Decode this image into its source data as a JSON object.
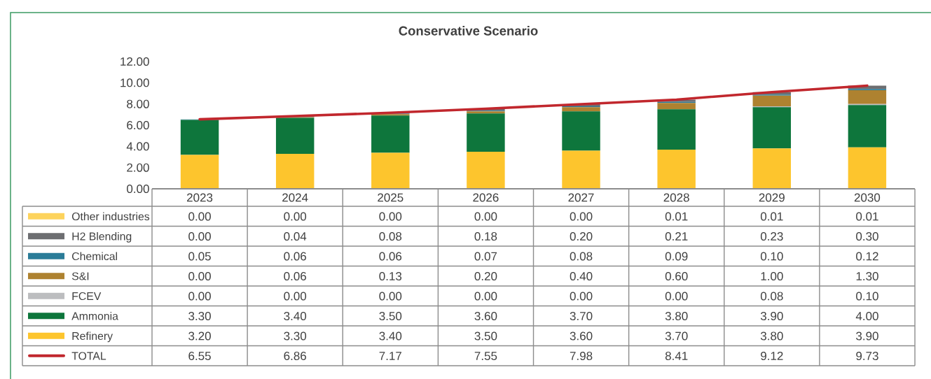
{
  "chart_data": {
    "type": "bar",
    "title": "Conservative Scenario",
    "stacked": true,
    "legend": "bottom",
    "categories": [
      "2023",
      "2024",
      "2025",
      "2026",
      "2027",
      "2028",
      "2029",
      "2030"
    ],
    "ylim": [
      0,
      12
    ],
    "yticks": [
      {
        "value": 0,
        "label": "0.00"
      },
      {
        "value": 2,
        "label": "2.00"
      },
      {
        "value": 4,
        "label": "4.00"
      },
      {
        "value": 6,
        "label": "6.00"
      },
      {
        "value": 8,
        "label": "8.00"
      },
      {
        "value": 10,
        "label": "10.00"
      },
      {
        "value": 12,
        "label": "12.00"
      }
    ],
    "series": [
      {
        "name": "Refinery",
        "color": "#fdc52d",
        "values": [
          3.2,
          3.3,
          3.4,
          3.5,
          3.6,
          3.7,
          3.8,
          3.9
        ],
        "value_labels": [
          "3.20",
          "3.30",
          "3.40",
          "3.50",
          "3.60",
          "3.70",
          "3.80",
          "3.90"
        ]
      },
      {
        "name": "Ammonia",
        "color": "#0e763c",
        "values": [
          3.3,
          3.4,
          3.5,
          3.6,
          3.7,
          3.8,
          3.9,
          4.0
        ],
        "value_labels": [
          "3.30",
          "3.40",
          "3.50",
          "3.60",
          "3.70",
          "3.80",
          "3.90",
          "4.00"
        ]
      },
      {
        "name": "FCEV",
        "color": "#bcbdbf",
        "values": [
          0,
          0,
          0,
          0,
          0,
          0,
          0.08,
          0.1
        ],
        "value_labels": [
          "0.00",
          "0.00",
          "0.00",
          "0.00",
          "0.00",
          "0.00",
          "0.08",
          "0.10"
        ]
      },
      {
        "name": "S&I",
        "color": "#ae8230",
        "values": [
          0,
          0.06,
          0.13,
          0.2,
          0.4,
          0.6,
          1.0,
          1.3
        ],
        "value_labels": [
          "0.00",
          "0.06",
          "0.13",
          "0.20",
          "0.40",
          "0.60",
          "1.00",
          "1.30"
        ]
      },
      {
        "name": "Chemical",
        "color": "#2b7c98",
        "values": [
          0.05,
          0.06,
          0.06,
          0.07,
          0.08,
          0.09,
          0.1,
          0.12
        ],
        "value_labels": [
          "0.05",
          "0.06",
          "0.06",
          "0.07",
          "0.08",
          "0.09",
          "0.10",
          "0.12"
        ]
      },
      {
        "name": "H2 Blending",
        "color": "#6d6e71",
        "values": [
          0,
          0.04,
          0.08,
          0.18,
          0.2,
          0.21,
          0.23,
          0.3
        ],
        "value_labels": [
          "0.00",
          "0.04",
          "0.08",
          "0.18",
          "0.20",
          "0.21",
          "0.23",
          "0.30"
        ]
      },
      {
        "name": "Other industries",
        "color": "#fdd35c",
        "values": [
          0,
          0,
          0,
          0,
          0,
          0.01,
          0.01,
          0.01
        ],
        "value_labels": [
          "0.00",
          "0.00",
          "0.00",
          "0.00",
          "0.00",
          "0.01",
          "0.01",
          "0.01"
        ]
      },
      {
        "name": "TOTAL",
        "type": "line",
        "color": "#c1272d",
        "values": [
          6.55,
          6.86,
          7.17,
          7.55,
          7.98,
          8.41,
          9.12,
          9.73
        ],
        "value_labels": [
          "6.55",
          "6.86",
          "7.17",
          "7.55",
          "7.98",
          "8.41",
          "9.12",
          "9.73"
        ]
      }
    ]
  }
}
